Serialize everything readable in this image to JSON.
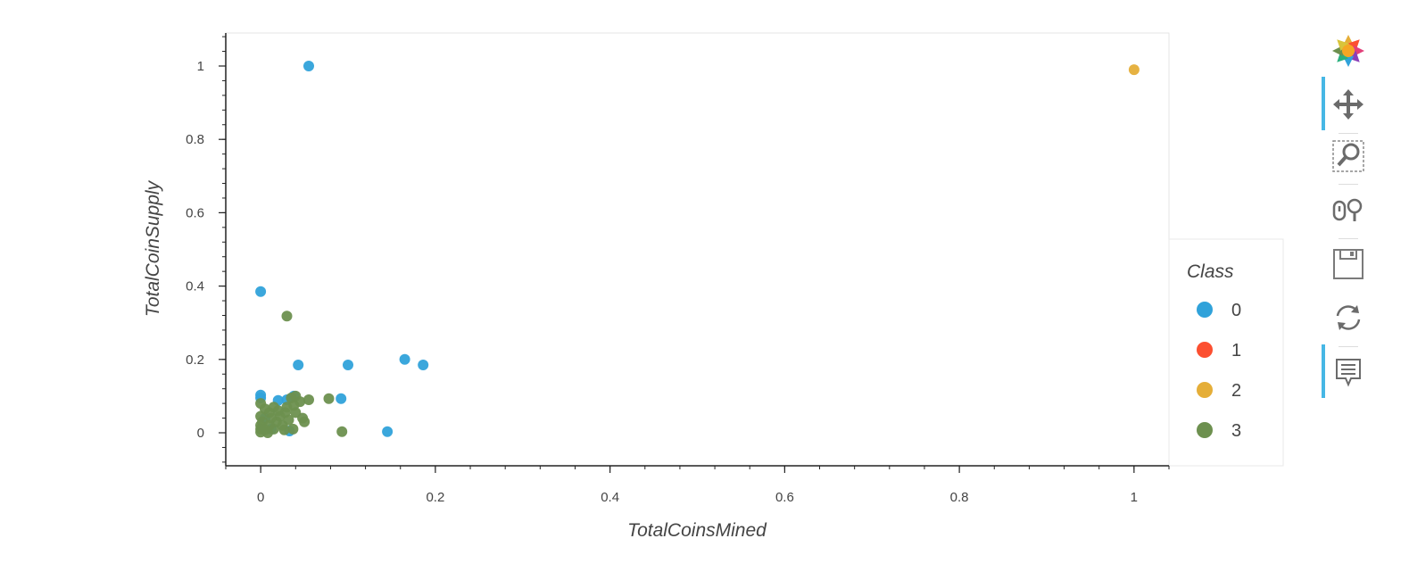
{
  "chart_data": {
    "type": "scatter",
    "title": "",
    "xlabel": "TotalCoinsMined",
    "ylabel": "TotalCoinSupply",
    "xlim": [
      -0.04,
      1.04
    ],
    "ylim": [
      -0.09,
      1.09
    ],
    "xticks": [
      0,
      0.2,
      0.4,
      0.6,
      0.8,
      1
    ],
    "xtick_labels": [
      "0",
      "0.2",
      "0.4",
      "0.6",
      "0.8",
      "1"
    ],
    "yticks": [
      0,
      0.2,
      0.4,
      0.6,
      0.8,
      1
    ],
    "ytick_labels": [
      "0",
      "0.2",
      "0.4",
      "0.6",
      "0.8",
      "1"
    ],
    "grid": false,
    "legend": {
      "title": "Class",
      "placement": "right"
    },
    "series": [
      {
        "name": "0",
        "color": "#30a2da",
        "points": [
          [
            0.055,
            1.0
          ],
          [
            0.0,
            0.385
          ],
          [
            0.043,
            0.185
          ],
          [
            0.1,
            0.185
          ],
          [
            0.165,
            0.2
          ],
          [
            0.186,
            0.185
          ],
          [
            0.0,
            0.103
          ],
          [
            0.0,
            0.095
          ],
          [
            0.02,
            0.088
          ],
          [
            0.03,
            0.09
          ],
          [
            0.038,
            0.1
          ],
          [
            0.092,
            0.093
          ],
          [
            0.145,
            0.003
          ],
          [
            0.033,
            0.005
          ],
          [
            0.012,
            0.01
          ],
          [
            0.005,
            0.04
          ]
        ]
      },
      {
        "name": "1",
        "color": "#fc4f30",
        "points": []
      },
      {
        "name": "2",
        "color": "#e5ae38",
        "points": [
          [
            1.0,
            0.99
          ]
        ]
      },
      {
        "name": "3",
        "color": "#6d904f",
        "points": [
          [
            0.03,
            0.318
          ],
          [
            0.0,
            0.08
          ],
          [
            0.005,
            0.065
          ],
          [
            0.01,
            0.055
          ],
          [
            0.0,
            0.045
          ],
          [
            0.002,
            0.03
          ],
          [
            0.0,
            0.02
          ],
          [
            0.0,
            0.01
          ],
          [
            0.0,
            0.002
          ],
          [
            0.008,
            0.0
          ],
          [
            0.015,
            0.01
          ],
          [
            0.018,
            0.03
          ],
          [
            0.022,
            0.045
          ],
          [
            0.025,
            0.02
          ],
          [
            0.028,
            0.055
          ],
          [
            0.03,
            0.07
          ],
          [
            0.035,
            0.095
          ],
          [
            0.04,
            0.1
          ],
          [
            0.045,
            0.085
          ],
          [
            0.048,
            0.04
          ],
          [
            0.05,
            0.03
          ],
          [
            0.055,
            0.09
          ],
          [
            0.078,
            0.093
          ],
          [
            0.093,
            0.003
          ],
          [
            0.012,
            0.04
          ],
          [
            0.032,
            0.035
          ],
          [
            0.037,
            0.01
          ],
          [
            0.02,
            0.06
          ],
          [
            0.027,
            0.008
          ],
          [
            0.04,
            0.055
          ],
          [
            0.01,
            0.02
          ],
          [
            0.005,
            0.008
          ],
          [
            0.015,
            0.07
          ],
          [
            0.038,
            0.075
          ]
        ]
      }
    ]
  },
  "toolbar": {
    "tools": [
      {
        "name": "bokeh-logo",
        "icon": "bokeh-logo-icon",
        "active": false
      },
      {
        "name": "pan-tool",
        "icon": "pan-icon",
        "active": true
      },
      {
        "name": "box-zoom-tool",
        "icon": "box-zoom-icon",
        "active": false
      },
      {
        "name": "wheel-zoom-tool",
        "icon": "wheel-zoom-icon",
        "active": false
      },
      {
        "name": "save-tool",
        "icon": "save-icon",
        "active": false
      },
      {
        "name": "reset-tool",
        "icon": "reset-icon",
        "active": false
      },
      {
        "name": "hover-tool",
        "icon": "hover-icon",
        "active": true
      }
    ]
  }
}
